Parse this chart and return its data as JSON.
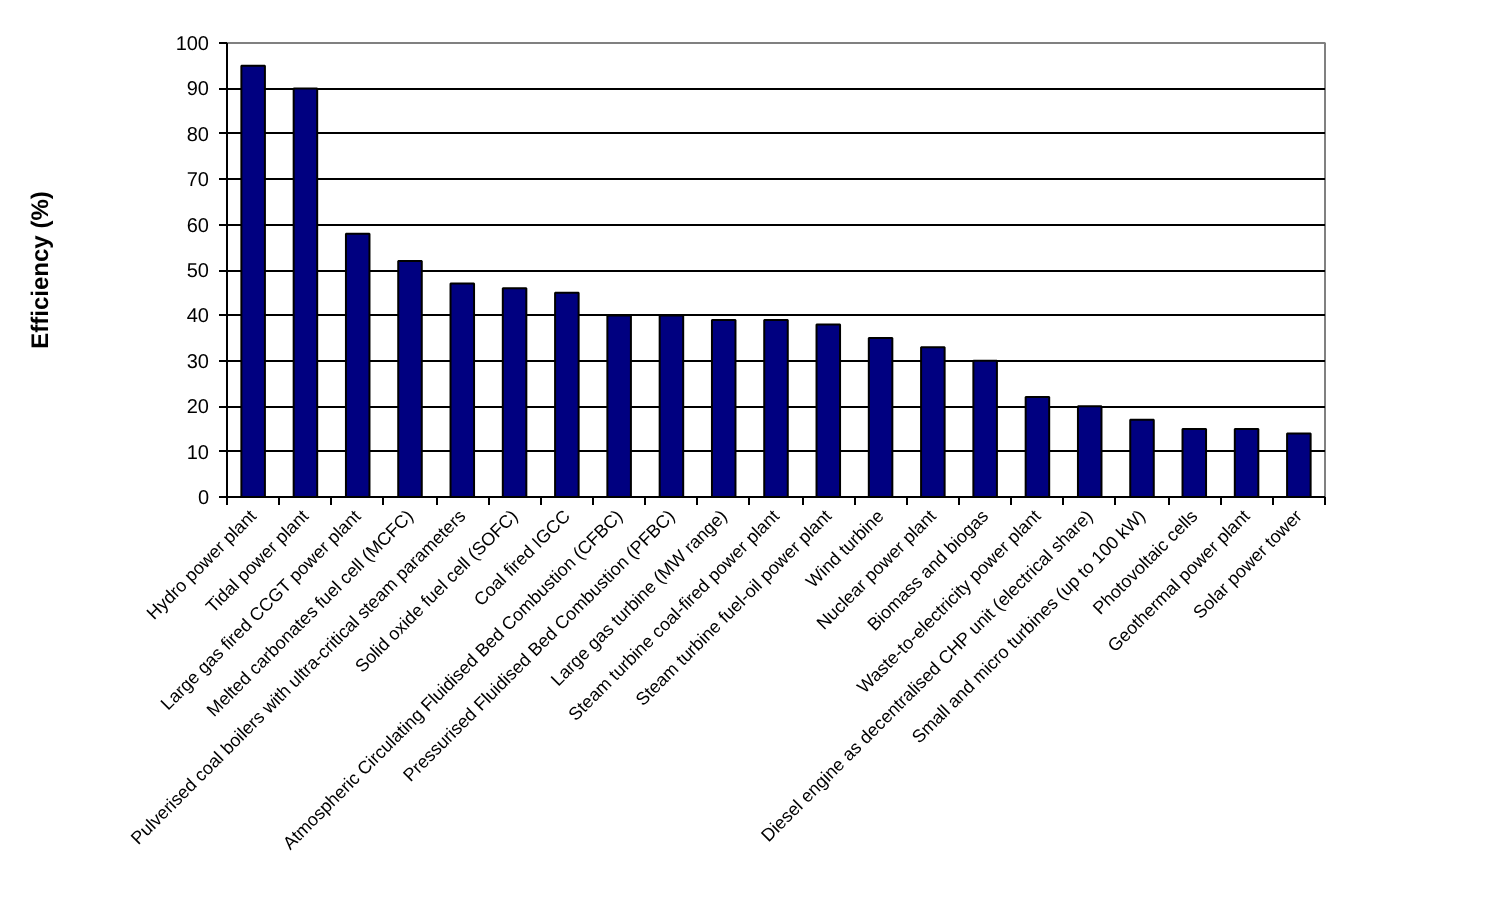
{
  "chart_data": {
    "type": "bar",
    "ylabel": "Efficiency (%)",
    "categories": [
      "Hydro power plant",
      "Tidal power plant",
      "Large gas fired CCGT power plant",
      "Melted carbonates fuel cell (MCFC)",
      "Pulverised coal boilers with ultra-critical steam parameters",
      "Solid oxide fuel cell (SOFC)",
      "Coal fired IGCC",
      "Atmospheric Circulating Fluidised Bed Combustion (CFBC)",
      "Pressurised Fluidised Bed Combustion (PFBC)",
      "Large gas turbine (MW range)",
      "Steam turbine coal-fired power plant",
      "Steam turbine fuel-oil power plant",
      "Wind turbine",
      "Nuclear power plant",
      "Biomass and biogas",
      "Waste-to-electricity power plant",
      "Diesel engine as decentralised CHP unit (electrical share)",
      "Small and micro turbines (up to 100 kW)",
      "Photovoltaic cells",
      "Geothermal power plant",
      "Solar power tower"
    ],
    "values": [
      95,
      90,
      58,
      52,
      47,
      46,
      45,
      40,
      40,
      39,
      39,
      38,
      35,
      33,
      30,
      22,
      20,
      17,
      15,
      15,
      14
    ],
    "color": "#000080",
    "ylim": [
      0,
      100
    ],
    "yticks": [
      0,
      10,
      20,
      30,
      40,
      50,
      60,
      70,
      80,
      90,
      100
    ],
    "grid": "y"
  }
}
